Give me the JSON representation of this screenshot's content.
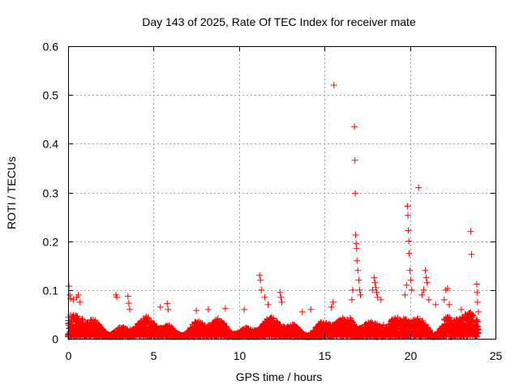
{
  "chart_data": {
    "type": "scatter",
    "title": "Day 143 of 2025, Rate Of TEC Index for receiver mate",
    "xlabel": "GPS time / hours",
    "ylabel": "ROTI / TECUs",
    "xlim": [
      0,
      25
    ],
    "ylim": [
      0,
      0.6
    ],
    "xticks": [
      0,
      5,
      10,
      15,
      20,
      25
    ],
    "xtick_labels": [
      "0",
      "5",
      "10",
      "15",
      "20",
      "25"
    ],
    "yticks": [
      0,
      0.1,
      0.2,
      0.3,
      0.4,
      0.5,
      0.6
    ],
    "ytick_labels": [
      "0",
      "0.1",
      "0.2",
      "0.3",
      "0.4",
      "0.5",
      "0.6"
    ],
    "grid": true,
    "marker": "+",
    "color": "#ff0000",
    "series": [
      {
        "name": "ROTI",
        "points": [
          [
            15.55,
            0.52
          ],
          [
            16.75,
            0.435
          ],
          [
            16.78,
            0.366
          ],
          [
            16.8,
            0.298
          ],
          [
            16.82,
            0.213
          ],
          [
            16.85,
            0.195
          ],
          [
            16.88,
            0.185
          ],
          [
            16.9,
            0.16
          ],
          [
            16.95,
            0.14
          ],
          [
            17.0,
            0.12
          ],
          [
            17.05,
            0.1
          ],
          [
            17.1,
            0.09
          ],
          [
            20.5,
            0.31
          ],
          [
            19.85,
            0.272
          ],
          [
            19.88,
            0.253
          ],
          [
            19.9,
            0.222
          ],
          [
            19.93,
            0.2
          ],
          [
            19.95,
            0.175
          ],
          [
            20.0,
            0.14
          ],
          [
            20.05,
            0.12
          ],
          [
            20.1,
            0.1
          ],
          [
            23.55,
            0.22
          ],
          [
            23.6,
            0.173
          ],
          [
            23.9,
            0.112
          ],
          [
            23.92,
            0.095
          ],
          [
            23.95,
            0.075
          ],
          [
            24.0,
            0.055
          ],
          [
            0.05,
            0.108
          ],
          [
            0.1,
            0.09
          ],
          [
            0.15,
            0.082
          ],
          [
            0.3,
            0.08
          ],
          [
            0.5,
            0.085
          ],
          [
            0.6,
            0.09
          ],
          [
            0.7,
            0.075
          ],
          [
            2.8,
            0.09
          ],
          [
            2.85,
            0.085
          ],
          [
            3.5,
            0.087
          ],
          [
            3.55,
            0.073
          ],
          [
            3.6,
            0.06
          ],
          [
            5.4,
            0.065
          ],
          [
            5.8,
            0.072
          ],
          [
            5.85,
            0.06
          ],
          [
            7.5,
            0.058
          ],
          [
            8.2,
            0.06
          ],
          [
            9.2,
            0.062
          ],
          [
            10.3,
            0.06
          ],
          [
            11.2,
            0.13
          ],
          [
            11.25,
            0.12
          ],
          [
            11.3,
            0.1
          ],
          [
            11.5,
            0.085
          ],
          [
            11.7,
            0.07
          ],
          [
            12.4,
            0.095
          ],
          [
            12.45,
            0.085
          ],
          [
            12.5,
            0.075
          ],
          [
            13.7,
            0.055
          ],
          [
            14.2,
            0.06
          ],
          [
            15.4,
            0.065
          ],
          [
            15.5,
            0.075
          ],
          [
            17.9,
            0.125
          ],
          [
            17.95,
            0.115
          ],
          [
            18.0,
            0.105
          ],
          [
            18.05,
            0.095
          ],
          [
            18.1,
            0.085
          ],
          [
            17.8,
            0.1
          ],
          [
            20.9,
            0.14
          ],
          [
            20.95,
            0.125
          ],
          [
            21.0,
            0.115
          ],
          [
            20.8,
            0.1
          ],
          [
            20.7,
            0.09
          ],
          [
            21.1,
            0.08
          ],
          [
            22.1,
            0.1
          ],
          [
            22.2,
            0.103
          ],
          [
            22.0,
            0.08
          ],
          [
            22.3,
            0.07
          ],
          [
            16.6,
            0.08
          ],
          [
            16.65,
            0.1
          ],
          [
            19.8,
            0.11
          ],
          [
            19.7,
            0.09
          ],
          [
            18.3,
            0.08
          ],
          [
            21.5,
            0.07
          ],
          [
            23.0,
            0.06
          ]
        ]
      }
    ]
  }
}
